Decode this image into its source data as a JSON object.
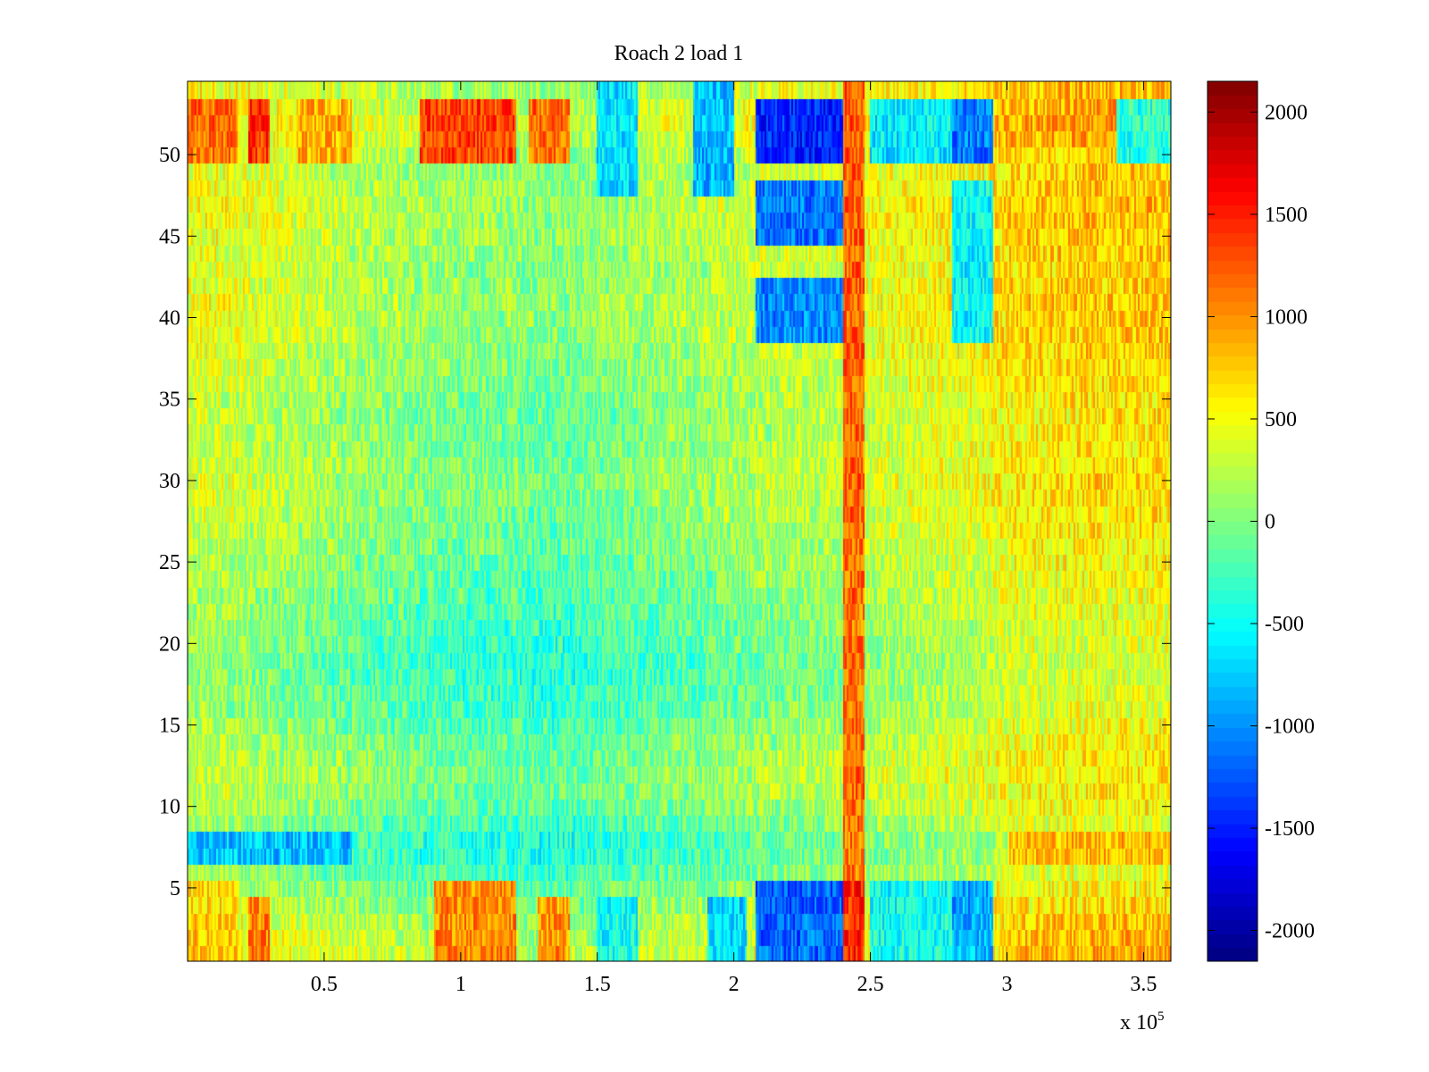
{
  "chart_data": {
    "type": "heatmap",
    "title": "Roach 2 load 1",
    "xlabel": "",
    "ylabel": "",
    "x_exponent_label": "x 10",
    "x_exponent_power": "5",
    "xlim": [
      0,
      360000
    ],
    "ylim": [
      0.5,
      54.5
    ],
    "x_ticks": [
      0.5,
      1,
      1.5,
      2,
      2.5,
      3,
      3.5
    ],
    "x_tick_labels": [
      "0.5",
      "1",
      "1.5",
      "2",
      "2.5",
      "3",
      "3.5"
    ],
    "y_ticks": [
      5,
      10,
      15,
      20,
      25,
      30,
      35,
      40,
      45,
      50
    ],
    "y_tick_labels": [
      "5",
      "10",
      "15",
      "20",
      "25",
      "30",
      "35",
      "40",
      "45",
      "50"
    ],
    "colorbar": {
      "colormap": "jet",
      "clim": [
        -2150,
        2150
      ],
      "ticks": [
        2000,
        1500,
        1000,
        500,
        0,
        -500,
        -1000,
        -1500,
        -2000
      ],
      "tick_labels": [
        "2000",
        "1500",
        "1000",
        "500",
        "0",
        "-500",
        "-1000",
        "-1500",
        "-2000"
      ]
    },
    "rows": 54,
    "base_profile_x": [
      0,
      10000,
      20000,
      30000,
      60000,
      90000,
      110000,
      120000,
      125000,
      135000,
      145000,
      155000,
      170000,
      190000,
      200000,
      210000,
      230000,
      242000,
      245000,
      250000,
      270000,
      290000,
      298000,
      310000,
      330000,
      360000
    ],
    "base_profile_value": [
      250,
      250,
      200,
      150,
      0,
      -100,
      -150,
      -150,
      -180,
      -200,
      -150,
      -100,
      -50,
      0,
      50,
      100,
      150,
      180,
      200,
      230,
      300,
      350,
      450,
      500,
      550,
      550
    ],
    "row_profile_value": [
      600,
      500,
      400,
      200,
      0,
      -200,
      -400,
      -400,
      -200,
      0,
      100,
      150,
      100,
      0,
      -100,
      -200,
      -250,
      -300,
      -300,
      -250,
      -200,
      -150,
      -100,
      -50,
      0,
      50,
      100,
      150,
      200,
      250,
      200,
      150,
      100,
      100,
      150,
      200,
      250,
      300,
      350,
      400,
      400,
      350,
      300,
      350,
      400,
      450,
      450,
      400,
      350,
      400,
      600,
      700,
      600,
      500
    ],
    "localized_features": [
      {
        "x_range": [
          0,
          18000
        ],
        "rows": [
          1,
          5
        ],
        "value": 700
      },
      {
        "x_range": [
          22000,
          30000
        ],
        "rows": [
          1,
          4
        ],
        "value": 1100
      },
      {
        "x_range": [
          90000,
          120000
        ],
        "rows": [
          1,
          5
        ],
        "value": 1200
      },
      {
        "x_range": [
          128000,
          140000
        ],
        "rows": [
          1,
          4
        ],
        "value": 1100
      },
      {
        "x_range": [
          150000,
          165000
        ],
        "rows": [
          1,
          4
        ],
        "value": -600
      },
      {
        "x_range": [
          190000,
          205000
        ],
        "rows": [
          1,
          4
        ],
        "value": -900
      },
      {
        "x_range": [
          208000,
          240000
        ],
        "rows": [
          1,
          5
        ],
        "value": -1500
      },
      {
        "x_range": [
          240000,
          248000
        ],
        "rows": [
          1,
          5
        ],
        "value": 1500
      },
      {
        "x_range": [
          250000,
          280000
        ],
        "rows": [
          1,
          5
        ],
        "value": -700
      },
      {
        "x_range": [
          280000,
          295000
        ],
        "rows": [
          1,
          5
        ],
        "value": -1200
      },
      {
        "x_range": [
          295000,
          300000
        ],
        "rows": [
          1,
          5
        ],
        "value": 500
      },
      {
        "x_range": [
          0,
          60000
        ],
        "rows": [
          7,
          8
        ],
        "value": -900
      },
      {
        "x_range": [
          300000,
          360000
        ],
        "rows": [
          7,
          8
        ],
        "value": 900
      },
      {
        "x_range": [
          0,
          18000
        ],
        "rows": [
          50,
          53
        ],
        "value": 1200
      },
      {
        "x_range": [
          22000,
          30000
        ],
        "rows": [
          50,
          53
        ],
        "value": 1500
      },
      {
        "x_range": [
          40000,
          60000
        ],
        "rows": [
          50,
          53
        ],
        "value": 900
      },
      {
        "x_range": [
          85000,
          120000
        ],
        "rows": [
          50,
          53
        ],
        "value": 1500
      },
      {
        "x_range": [
          125000,
          140000
        ],
        "rows": [
          50,
          53
        ],
        "value": 1300
      },
      {
        "x_range": [
          150000,
          165000
        ],
        "rows": [
          48,
          54
        ],
        "value": -800
      },
      {
        "x_range": [
          185000,
          200000
        ],
        "rows": [
          48,
          54
        ],
        "value": -1100
      },
      {
        "x_range": [
          208000,
          240000
        ],
        "rows": [
          50,
          53
        ],
        "value": -1900
      },
      {
        "x_range": [
          208000,
          240000
        ],
        "rows": [
          45,
          48
        ],
        "value": -1400
      },
      {
        "x_range": [
          208000,
          240000
        ],
        "rows": [
          39,
          42
        ],
        "value": -1300
      },
      {
        "x_range": [
          240000,
          248000
        ],
        "rows": [
          1,
          54
        ],
        "value": 1300
      },
      {
        "x_range": [
          250000,
          280000
        ],
        "rows": [
          50,
          53
        ],
        "value": -900
      },
      {
        "x_range": [
          280000,
          295000
        ],
        "rows": [
          50,
          53
        ],
        "value": -1500
      },
      {
        "x_range": [
          280000,
          295000
        ],
        "rows": [
          39,
          48
        ],
        "value": -800
      },
      {
        "x_range": [
          340000,
          360000
        ],
        "rows": [
          50,
          53
        ],
        "value": -700
      }
    ]
  }
}
